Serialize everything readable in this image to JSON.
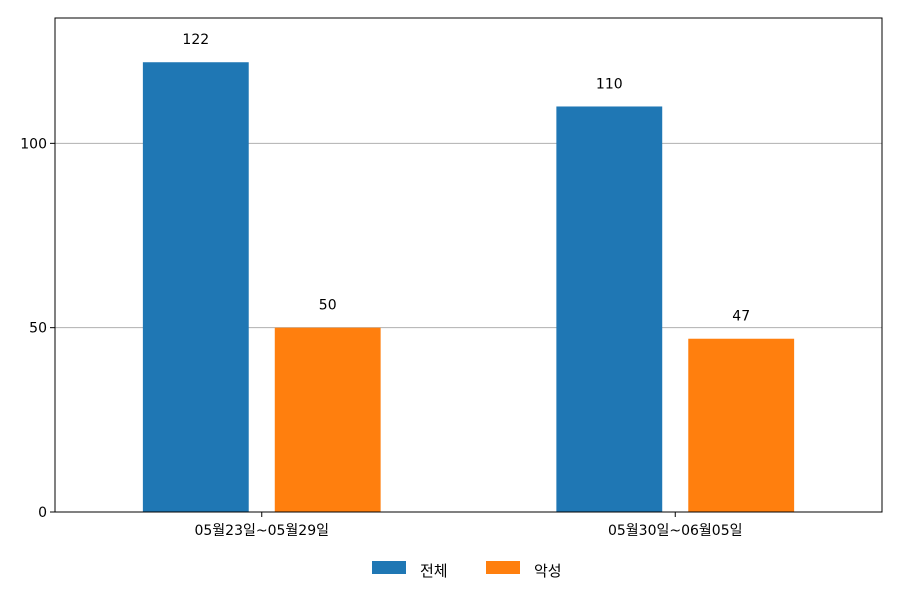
{
  "chart_data": {
    "type": "bar",
    "categories": [
      "05월23일~05월29일",
      "05월30일~06월05일"
    ],
    "series": [
      {
        "name": "전체",
        "values": [
          122,
          110
        ],
        "color": "#1f77b4"
      },
      {
        "name": "악성",
        "values": [
          50,
          47
        ],
        "color": "#ff7f0e"
      }
    ],
    "ylim": [
      0,
      134
    ],
    "yticks": [
      0,
      50,
      100
    ],
    "grid": true,
    "legend_position": "bottom-center",
    "data_labels": true
  }
}
